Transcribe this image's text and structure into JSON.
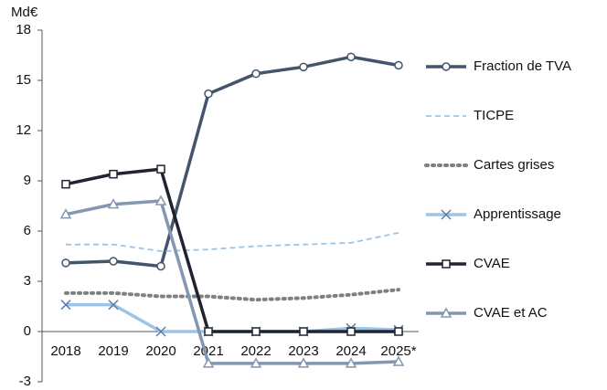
{
  "chart_data": {
    "type": "line",
    "y_label": "Md€",
    "categories": [
      "2018",
      "2019",
      "2020",
      "2021",
      "2022",
      "2023",
      "2024",
      "2025*"
    ],
    "ylim": [
      -3,
      18
    ],
    "yticks": [
      -3,
      0,
      3,
      6,
      9,
      12,
      15,
      18
    ],
    "grid": false,
    "legend": "right",
    "series": [
      {
        "name": "Fraction de TVA",
        "color": "#44546a",
        "style": "solid",
        "marker": "circle",
        "values": [
          4.1,
          4.2,
          3.9,
          14.2,
          15.4,
          15.8,
          16.4,
          15.9
        ]
      },
      {
        "name": "TICPE",
        "color": "#9dc3e6",
        "style": "dashed",
        "marker": "none",
        "values": [
          5.2,
          5.2,
          4.8,
          4.9,
          5.1,
          5.2,
          5.3,
          5.9
        ]
      },
      {
        "name": "Cartes grises",
        "color": "#808080",
        "style": "dotted",
        "marker": "none",
        "values": [
          2.3,
          2.3,
          2.1,
          2.1,
          1.9,
          2.0,
          2.2,
          2.5
        ]
      },
      {
        "name": "Apprentissage",
        "color": "#9dc3e6",
        "style": "solid",
        "marker": "x",
        "values": [
          1.6,
          1.6,
          0,
          0,
          0,
          0,
          0.2,
          0.1
        ]
      },
      {
        "name": "CVAE",
        "color": "#1f2430",
        "style": "solid",
        "marker": "square",
        "values": [
          8.8,
          9.4,
          9.7,
          0,
          0,
          0,
          0,
          0
        ]
      },
      {
        "name": "CVAE et AC",
        "color": "#8497b0",
        "style": "solid",
        "marker": "triangle",
        "values": [
          7.0,
          7.6,
          7.8,
          -1.9,
          -1.9,
          -1.9,
          -1.9,
          -1.8
        ]
      }
    ]
  }
}
